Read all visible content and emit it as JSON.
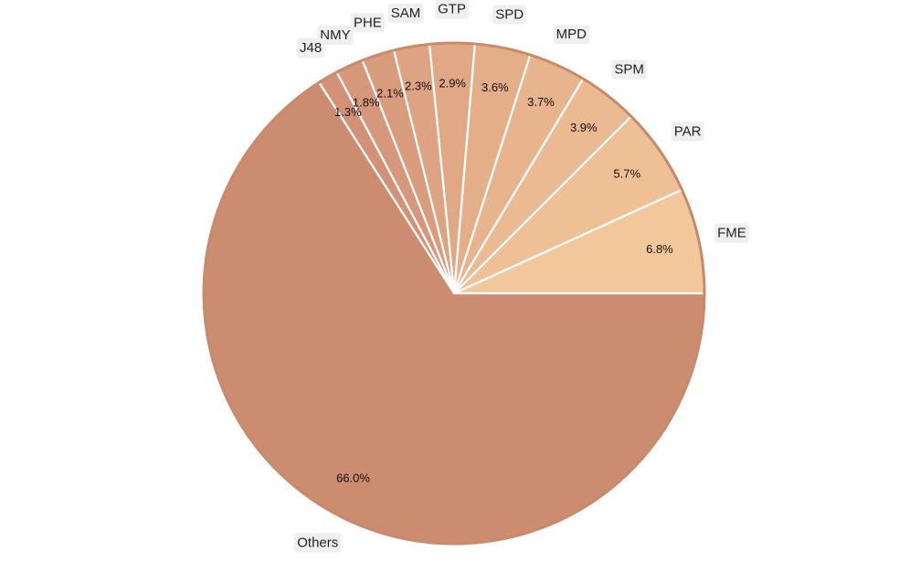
{
  "chart_data": {
    "type": "pie",
    "title": "",
    "slices": [
      {
        "label": "FME",
        "value": 6.8,
        "pct_label": "6.8%",
        "color": "#f2c79c"
      },
      {
        "label": "PAR",
        "value": 5.7,
        "pct_label": "5.7%",
        "color": "#efc096"
      },
      {
        "label": "SPM",
        "value": 3.9,
        "pct_label": "3.9%",
        "color": "#ebba92"
      },
      {
        "label": "MPD",
        "value": 3.7,
        "pct_label": "3.7%",
        "color": "#e8b48d"
      },
      {
        "label": "SPD",
        "value": 3.6,
        "pct_label": "3.6%",
        "color": "#e4ae89"
      },
      {
        "label": "GTP",
        "value": 2.9,
        "pct_label": "2.9%",
        "color": "#e1a886"
      },
      {
        "label": "SAM",
        "value": 2.3,
        "pct_label": "2.3%",
        "color": "#dda382"
      },
      {
        "label": "PHE",
        "value": 2.1,
        "pct_label": "2.1%",
        "color": "#d99d7e"
      },
      {
        "label": "NMY",
        "value": 1.8,
        "pct_label": "1.8%",
        "color": "#d6977a"
      },
      {
        "label": "J48",
        "value": 1.3,
        "pct_label": "1.3%",
        "color": "#d39277"
      },
      {
        "label": "Others",
        "value": 66.0,
        "pct_label": "66.0%",
        "color": "#cc8c6f"
      }
    ],
    "start_angle_deg": 0,
    "direction": "counterclockwise",
    "legend": "none"
  }
}
